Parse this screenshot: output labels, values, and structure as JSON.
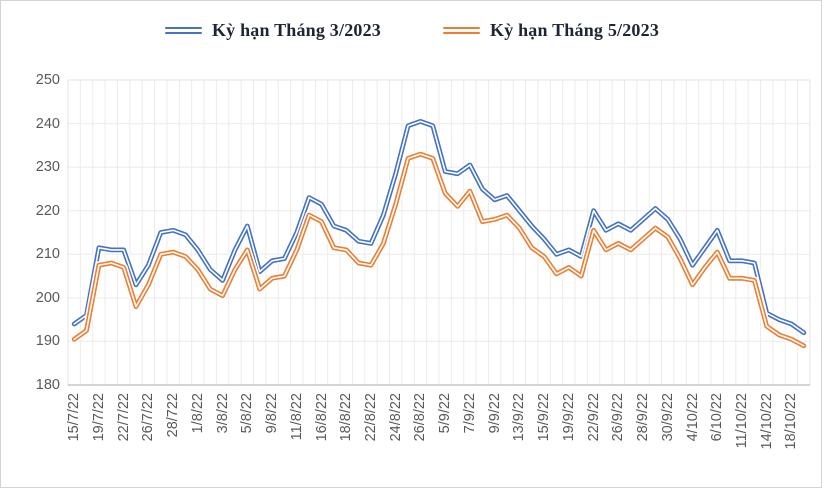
{
  "legend": {
    "items": [
      {
        "label": "Kỳ hạn Tháng 3/2023",
        "color": "#4472C4"
      },
      {
        "label": "Kỳ hạn Tháng 5/2023",
        "color": "#ED7D31"
      }
    ]
  },
  "chart_data": {
    "type": "line",
    "title": "",
    "xlabel": "",
    "ylabel": "",
    "categories": [
      "15/7/22",
      "19/7/22",
      "22/7/22",
      "26/7/22",
      "28/722",
      "1/8/22",
      "3/8/22",
      "5/8/22",
      "9/8/22",
      "11/8/22",
      "16/8/22",
      "18/8/22",
      "22/8/22",
      "24/8/22",
      "26/8/22",
      "5/9/22",
      "7/9/22",
      "9/9/22",
      "13/9/22",
      "15/9/22",
      "19/9/22",
      "22/9/22",
      "26/9/22",
      "28/9/22",
      "30/9/22",
      "4/10/22",
      "6/10/22",
      "11/10/22",
      "14/10/22",
      "18/10/22"
    ],
    "points_per_label": 2,
    "series": [
      {
        "name": "Kỳ hạn Tháng 3/2023",
        "color": "#4472C4",
        "values": [
          194,
          196,
          211.5,
          211,
          211,
          203,
          207.5,
          215,
          215.5,
          214.5,
          211,
          206.5,
          204,
          211,
          216.5,
          206,
          208.5,
          209,
          215,
          223,
          221.5,
          216.5,
          215.5,
          213,
          212.5,
          219,
          228.5,
          239.5,
          240.5,
          239.5,
          229,
          228.5,
          230.5,
          225,
          222.5,
          223.5,
          220,
          216.5,
          213.5,
          210,
          211,
          209.5,
          220,
          215.5,
          217,
          215.5,
          218,
          220.5,
          218,
          213.5,
          207.5,
          211.5,
          215.5,
          208.5,
          208.5,
          208,
          196.5,
          195,
          194,
          192
        ]
      },
      {
        "name": "Kỳ hạn Tháng 5/2023",
        "color": "#ED7D31",
        "values": [
          190.5,
          192.5,
          207.5,
          208,
          207,
          198,
          203,
          210,
          210.5,
          209.5,
          206.5,
          202,
          200.5,
          206.5,
          211,
          202,
          204.5,
          205,
          211,
          219,
          217.5,
          211.5,
          211,
          208,
          207.5,
          212.5,
          221.5,
          232,
          233,
          232,
          224,
          221,
          224.5,
          217.5,
          218,
          219,
          216,
          211.5,
          209.5,
          205.5,
          207,
          205,
          215.5,
          211,
          212.5,
          211,
          213.5,
          216,
          214,
          209,
          203,
          207,
          210.5,
          204.5,
          204.5,
          204,
          193.5,
          191.5,
          190.5,
          189
        ]
      }
    ],
    "ylim": [
      180,
      250
    ],
    "yticks": [
      250,
      240,
      230,
      220,
      210,
      200,
      190,
      180
    ],
    "grid": "both",
    "legend_position": "top",
    "line_style": "double"
  },
  "colors": {
    "grid": "#EBEBEB",
    "plot_border": "#E3E3E3",
    "axis_line": "#C6C6C6",
    "axis_text": "#595959",
    "legend_text": "#1F2633",
    "frame_border": "#D3D3D3",
    "background": "#FFFFFF"
  }
}
